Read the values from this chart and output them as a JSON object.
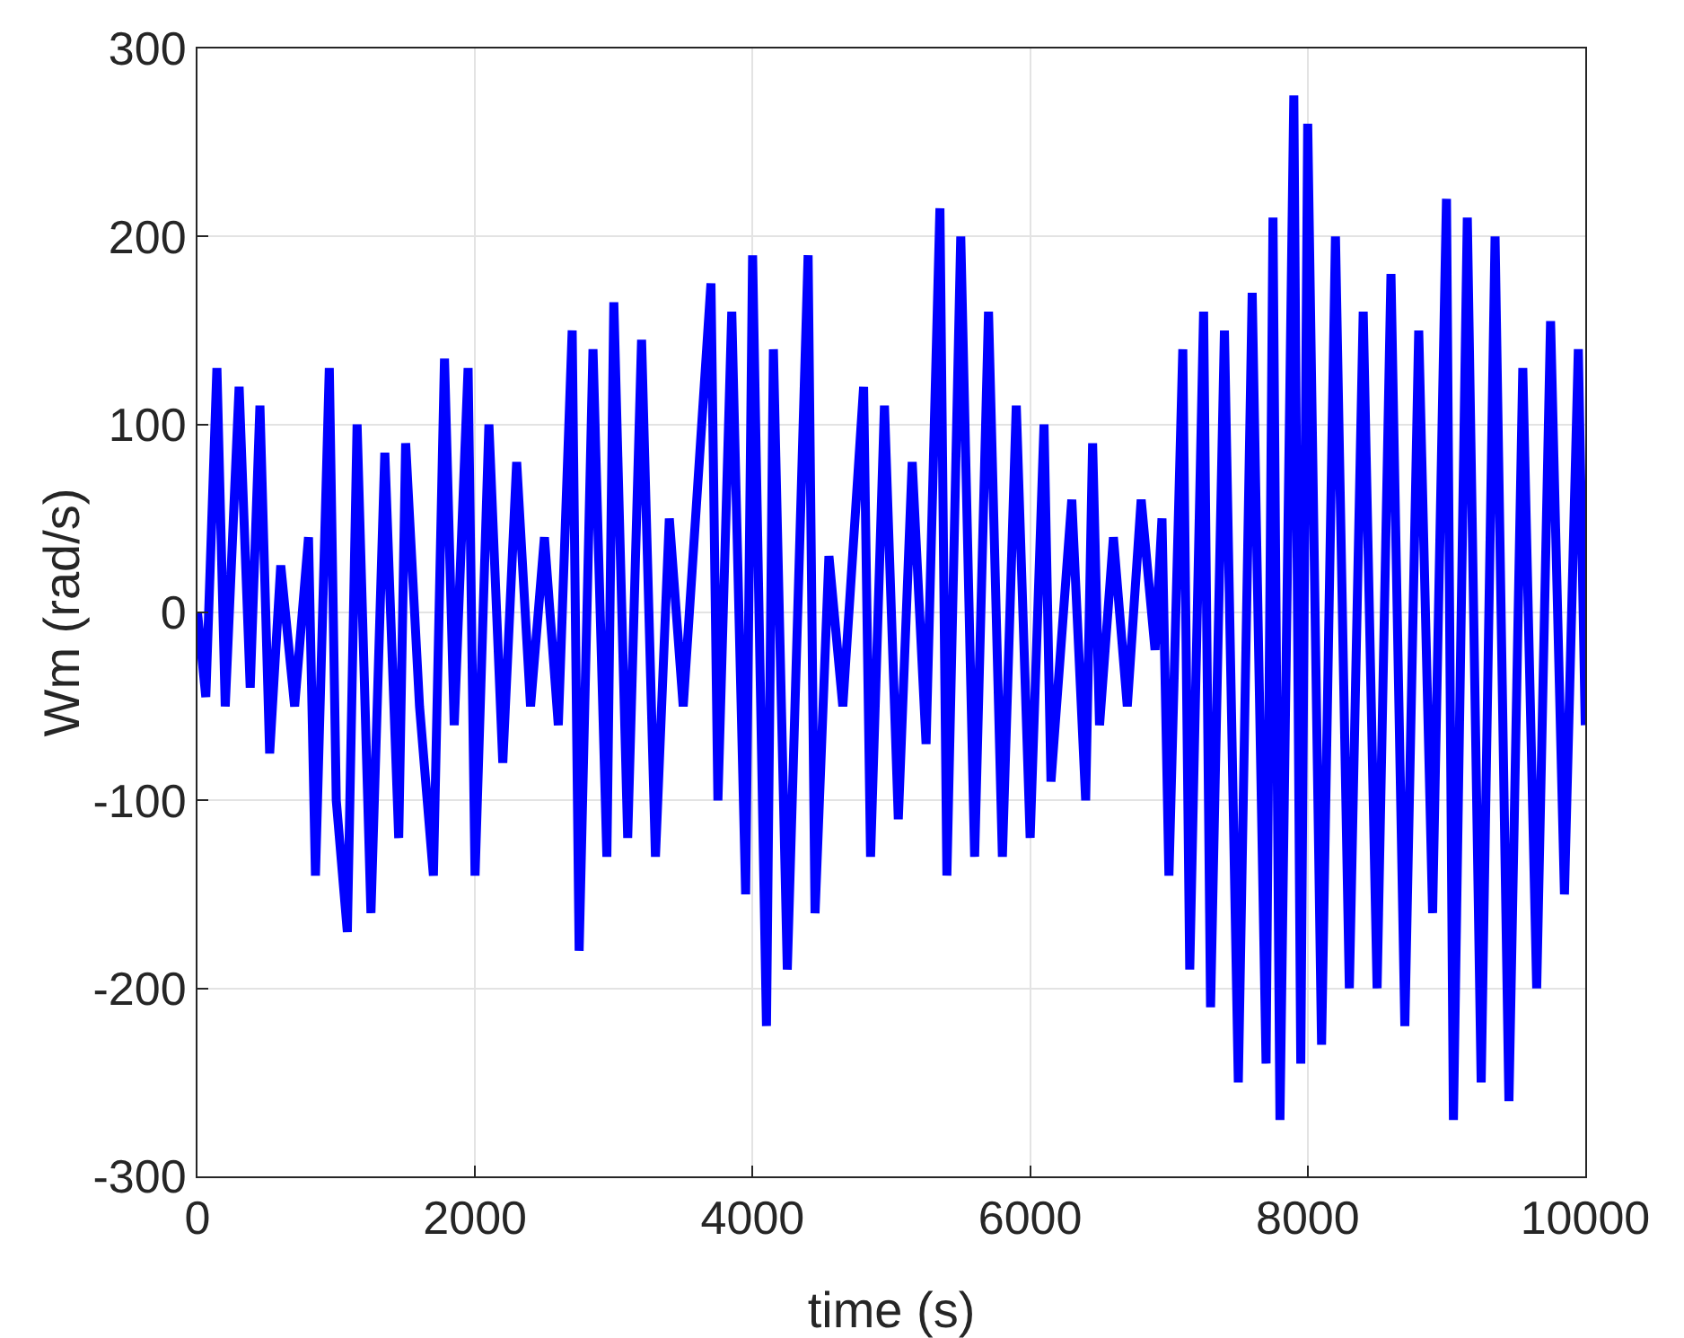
{
  "chart_data": {
    "type": "line",
    "xlabel": "time (s)",
    "ylabel": "Wm (rad/s)",
    "x": [
      0,
      60,
      140,
      200,
      300,
      380,
      450,
      520,
      600,
      700,
      800,
      850,
      950,
      1000,
      1080,
      1150,
      1250,
      1350,
      1450,
      1500,
      1600,
      1700,
      1780,
      1850,
      1950,
      2000,
      2100,
      2200,
      2300,
      2400,
      2500,
      2600,
      2700,
      2750,
      2850,
      2950,
      3000,
      3100,
      3200,
      3300,
      3400,
      3500,
      3700,
      3750,
      3850,
      3950,
      4000,
      4100,
      4150,
      4250,
      4400,
      4450,
      4550,
      4650,
      4800,
      4850,
      4950,
      5050,
      5150,
      5250,
      5350,
      5400,
      5500,
      5600,
      5700,
      5800,
      5900,
      6000,
      6100,
      6150,
      6300,
      6400,
      6450,
      6500,
      6600,
      6700,
      6800,
      6900,
      6950,
      7000,
      7100,
      7150,
      7250,
      7300,
      7400,
      7500,
      7600,
      7700,
      7750,
      7800,
      7900,
      7950,
      8000,
      8100,
      8200,
      8300,
      8400,
      8500,
      8600,
      8700,
      8800,
      8900,
      9000,
      9050,
      9150,
      9250,
      9350,
      9450,
      9550,
      9650,
      9750,
      9850,
      9950,
      10000
    ],
    "series": [
      {
        "color": "#0000ff",
        "values": [
          0,
          -45,
          130,
          -50,
          120,
          -40,
          110,
          -75,
          25,
          -50,
          40,
          -140,
          130,
          -100,
          -170,
          100,
          -160,
          85,
          -120,
          90,
          -50,
          -140,
          135,
          -60,
          130,
          -140,
          100,
          -80,
          80,
          -50,
          40,
          -60,
          150,
          -180,
          140,
          -130,
          165,
          -120,
          145,
          -130,
          50,
          -50,
          175,
          -100,
          160,
          -150,
          190,
          -220,
          140,
          -190,
          190,
          -160,
          30,
          -50,
          120,
          -130,
          110,
          -110,
          80,
          -70,
          215,
          -140,
          200,
          -130,
          160,
          -130,
          110,
          -120,
          100,
          -90,
          60,
          -100,
          90,
          -60,
          40,
          -50,
          60,
          -20,
          50,
          -140,
          140,
          -190,
          160,
          -210,
          150,
          -250,
          170,
          -240,
          210,
          -270,
          275,
          -240,
          260,
          -230,
          200,
          -200,
          160,
          -200,
          180,
          -220,
          150,
          -160,
          220,
          -270,
          210,
          -250,
          200,
          -260,
          130,
          -200,
          155,
          -150,
          140,
          -60
        ]
      }
    ],
    "xlim": [
      0,
      10000
    ],
    "ylim": [
      -300,
      300
    ],
    "xticks": [
      0,
      2000,
      4000,
      6000,
      8000,
      10000
    ],
    "yticks": [
      -300,
      -200,
      -100,
      0,
      100,
      200,
      300
    ],
    "grid": true,
    "line_style": "solid",
    "marker": "none"
  }
}
